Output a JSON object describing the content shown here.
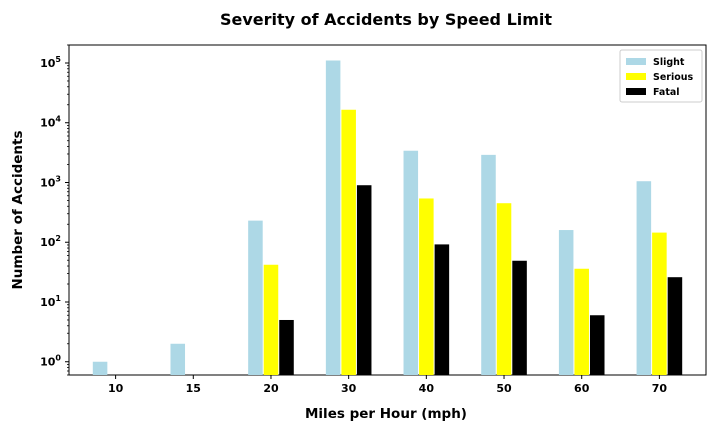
{
  "chart_data": {
    "type": "bar",
    "title": "Severity of Accidents by Speed Limit",
    "xlabel": "Miles per Hour (mph)",
    "ylabel": "Number of Accidents",
    "yscale": "log",
    "ylim": [
      0.6,
      200000
    ],
    "categories": [
      "10",
      "15",
      "20",
      "30",
      "40",
      "50",
      "60",
      "70"
    ],
    "yticks": [
      {
        "base": "10",
        "exp": "0"
      },
      {
        "base": "10",
        "exp": "1"
      },
      {
        "base": "10",
        "exp": "2"
      },
      {
        "base": "10",
        "exp": "3"
      },
      {
        "base": "10",
        "exp": "4"
      },
      {
        "base": "10",
        "exp": "5"
      }
    ],
    "legend_position": "top-right",
    "grid": false,
    "series": [
      {
        "name": "Slight",
        "color": "#add8e6",
        "values": [
          1,
          2,
          230,
          110000,
          3400,
          2900,
          160,
          1050
        ]
      },
      {
        "name": "Serious",
        "color": "#ffff00",
        "values": [
          null,
          null,
          42,
          16500,
          540,
          450,
          36,
          145
        ]
      },
      {
        "name": "Fatal",
        "color": "#000000",
        "values": [
          null,
          null,
          5,
          900,
          92,
          49,
          6,
          26
        ]
      }
    ]
  }
}
